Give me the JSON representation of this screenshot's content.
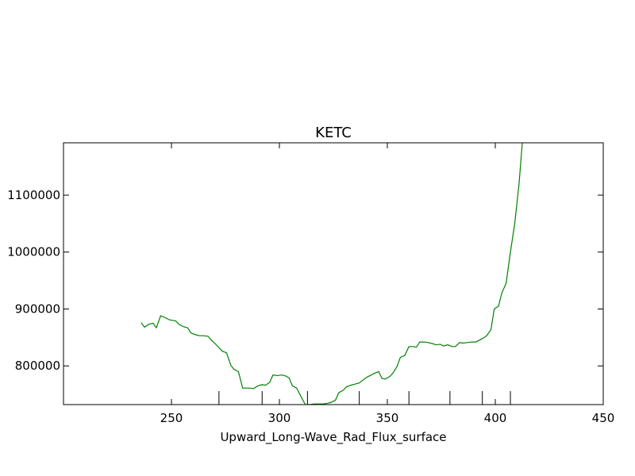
{
  "chart_data": {
    "type": "line",
    "title": "KETC",
    "xlabel": "Upward_Long-Wave_Rad_Flux_surface",
    "ylabel": "",
    "xlim": [
      200,
      450
    ],
    "ylim": [
      732000,
      1192000
    ],
    "xticks": [
      250,
      300,
      350,
      400,
      450
    ],
    "yticks": [
      800000,
      900000,
      1000000,
      1100000
    ],
    "xtick_labels": [
      "250",
      "300",
      "350",
      "400",
      "450"
    ],
    "ytick_labels": [
      "800000",
      "900000",
      "1000000",
      "1100000"
    ],
    "rug_ticks_x": [
      272,
      292,
      313,
      337,
      360,
      379,
      394,
      407
    ],
    "grid": false,
    "legend": "none",
    "series": [
      {
        "color": "#008000",
        "x": [
          236,
          237.5,
          239.5,
          241.5,
          243,
          245,
          247,
          249,
          250.5,
          252,
          253.5,
          255.5,
          257.5,
          259,
          261,
          263,
          265,
          267,
          268.5,
          270,
          272,
          273.5,
          275.5,
          277.5,
          279,
          281,
          283,
          284.5,
          286.5,
          288,
          290,
          292,
          293.5,
          295.5,
          297,
          299,
          301,
          302.5,
          304.5,
          306,
          308,
          310,
          312,
          314,
          316,
          318,
          320,
          322,
          324,
          326,
          327.5,
          329.5,
          331,
          333,
          335,
          337,
          339,
          340.5,
          342.5,
          344,
          346,
          347.5,
          349,
          351,
          352.5,
          354.5,
          356,
          358,
          360,
          361.5,
          363.5,
          365,
          367,
          369,
          371,
          372.5,
          374.5,
          376,
          378,
          380,
          381.5,
          383.5,
          385,
          387,
          389,
          391,
          392.5,
          394.5,
          396,
          398,
          399.5,
          401.5,
          403,
          405,
          407,
          409,
          411,
          412.5
        ],
        "y": [
          876000,
          868000,
          873000,
          875000,
          867000,
          888000,
          885000,
          881000,
          880000,
          879000,
          873000,
          869000,
          867000,
          858000,
          855000,
          853000,
          853000,
          852000,
          845000,
          840000,
          832000,
          826000,
          823000,
          801000,
          794000,
          790000,
          761000,
          761000,
          761000,
          760000,
          765000,
          767000,
          766000,
          771000,
          784000,
          783000,
          784000,
          783000,
          779000,
          765000,
          761000,
          746000,
          732000,
          732000,
          733000,
          733000,
          733000,
          734000,
          736000,
          740000,
          753000,
          757000,
          763000,
          766000,
          768000,
          770000,
          776000,
          780000,
          784000,
          787000,
          790000,
          778000,
          777000,
          781000,
          787000,
          799000,
          815000,
          818000,
          834000,
          834000,
          833000,
          842000,
          842000,
          841000,
          839000,
          837000,
          838000,
          835000,
          837000,
          834000,
          834000,
          841000,
          840000,
          841000,
          842000,
          842000,
          845000,
          849000,
          853000,
          864000,
          900000,
          905000,
          928000,
          945000,
          1000000,
          1050000,
          1120000,
          1192000
        ]
      }
    ]
  }
}
